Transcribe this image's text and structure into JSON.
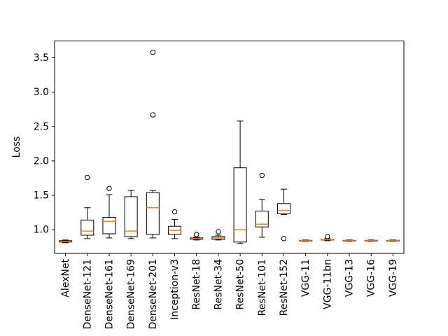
{
  "figure": {
    "background": "#ffffff"
  },
  "chart_data": {
    "type": "boxplot",
    "title": "",
    "xlabel": "",
    "ylabel": "Loss",
    "grid": false,
    "legend": null,
    "xlim": [
      0.5,
      16.5
    ],
    "ylim": [
      0.655,
      3.745
    ],
    "yticks": [
      1.0,
      1.5,
      2.0,
      2.5,
      3.0,
      3.5
    ],
    "ytick_labels": [
      "1.0",
      "1.5",
      "2.0",
      "2.5",
      "3.0",
      "3.5"
    ],
    "categories": [
      "AlexNet",
      "DenseNet-121",
      "DenseNet-161",
      "DenseNet-169",
      "DenseNet-201",
      "Inception-v3",
      "ResNet-18",
      "ResNet-34",
      "ResNet-50",
      "ResNet-101",
      "ResNet-152",
      "VGG-11",
      "VGG-11bn",
      "VGG-13",
      "VGG-16",
      "VGG-19"
    ],
    "colors": {
      "median": "#ff7f0e",
      "box_edge": "#000000",
      "whisker": "#000000",
      "flier_edge": "#000000",
      "axis": "#000000"
    },
    "series": [
      {
        "label": "AlexNet",
        "whislo": 0.81,
        "q1": 0.82,
        "med": 0.83,
        "q3": 0.84,
        "whishi": 0.85,
        "fliers": []
      },
      {
        "label": "DenseNet-121",
        "whislo": 0.87,
        "q1": 0.92,
        "med": 0.98,
        "q3": 1.14,
        "whishi": 1.32,
        "fliers": [
          1.76
        ]
      },
      {
        "label": "DenseNet-161",
        "whislo": 0.88,
        "q1": 0.94,
        "med": 1.12,
        "q3": 1.18,
        "whishi": 1.51,
        "fliers": [
          1.6
        ]
      },
      {
        "label": "DenseNet-169",
        "whislo": 0.87,
        "q1": 0.9,
        "med": 0.98,
        "q3": 1.48,
        "whishi": 1.57,
        "fliers": []
      },
      {
        "label": "DenseNet-201",
        "whislo": 0.88,
        "q1": 0.93,
        "med": 1.32,
        "q3": 1.54,
        "whishi": 1.57,
        "fliers": [
          2.67,
          3.58
        ]
      },
      {
        "label": "Inception-v3",
        "whislo": 0.87,
        "q1": 0.93,
        "med": 0.99,
        "q3": 1.05,
        "whishi": 1.15,
        "fliers": [
          1.26
        ]
      },
      {
        "label": "ResNet-18",
        "whislo": 0.85,
        "q1": 0.86,
        "med": 0.87,
        "q3": 0.88,
        "whishi": 0.89,
        "fliers": [
          0.93
        ]
      },
      {
        "label": "ResNet-34",
        "whislo": 0.85,
        "q1": 0.86,
        "med": 0.88,
        "q3": 0.9,
        "whishi": 0.92,
        "fliers": [
          0.97
        ]
      },
      {
        "label": "ResNet-50",
        "whislo": 0.8,
        "q1": 0.82,
        "med": 1.0,
        "q3": 1.9,
        "whishi": 2.58,
        "fliers": []
      },
      {
        "label": "ResNet-101",
        "whislo": 0.89,
        "q1": 1.04,
        "med": 1.08,
        "q3": 1.27,
        "whishi": 1.44,
        "fliers": [
          1.79
        ]
      },
      {
        "label": "ResNet-152",
        "whislo": 1.22,
        "q1": 1.23,
        "med": 1.28,
        "q3": 1.38,
        "whishi": 1.59,
        "fliers": [
          0.87
        ]
      },
      {
        "label": "VGG-11",
        "whislo": 0.83,
        "q1": 0.835,
        "med": 0.84,
        "q3": 0.845,
        "whishi": 0.85,
        "fliers": []
      },
      {
        "label": "VGG-11bn",
        "whislo": 0.84,
        "q1": 0.85,
        "med": 0.855,
        "q3": 0.86,
        "whishi": 0.87,
        "fliers": [
          0.9
        ]
      },
      {
        "label": "VGG-13",
        "whislo": 0.83,
        "q1": 0.835,
        "med": 0.84,
        "q3": 0.845,
        "whishi": 0.85,
        "fliers": []
      },
      {
        "label": "VGG-16",
        "whislo": 0.83,
        "q1": 0.835,
        "med": 0.84,
        "q3": 0.845,
        "whishi": 0.85,
        "fliers": []
      },
      {
        "label": "VGG-19",
        "whislo": 0.83,
        "q1": 0.835,
        "med": 0.84,
        "q3": 0.845,
        "whishi": 0.85,
        "fliers": []
      }
    ]
  }
}
